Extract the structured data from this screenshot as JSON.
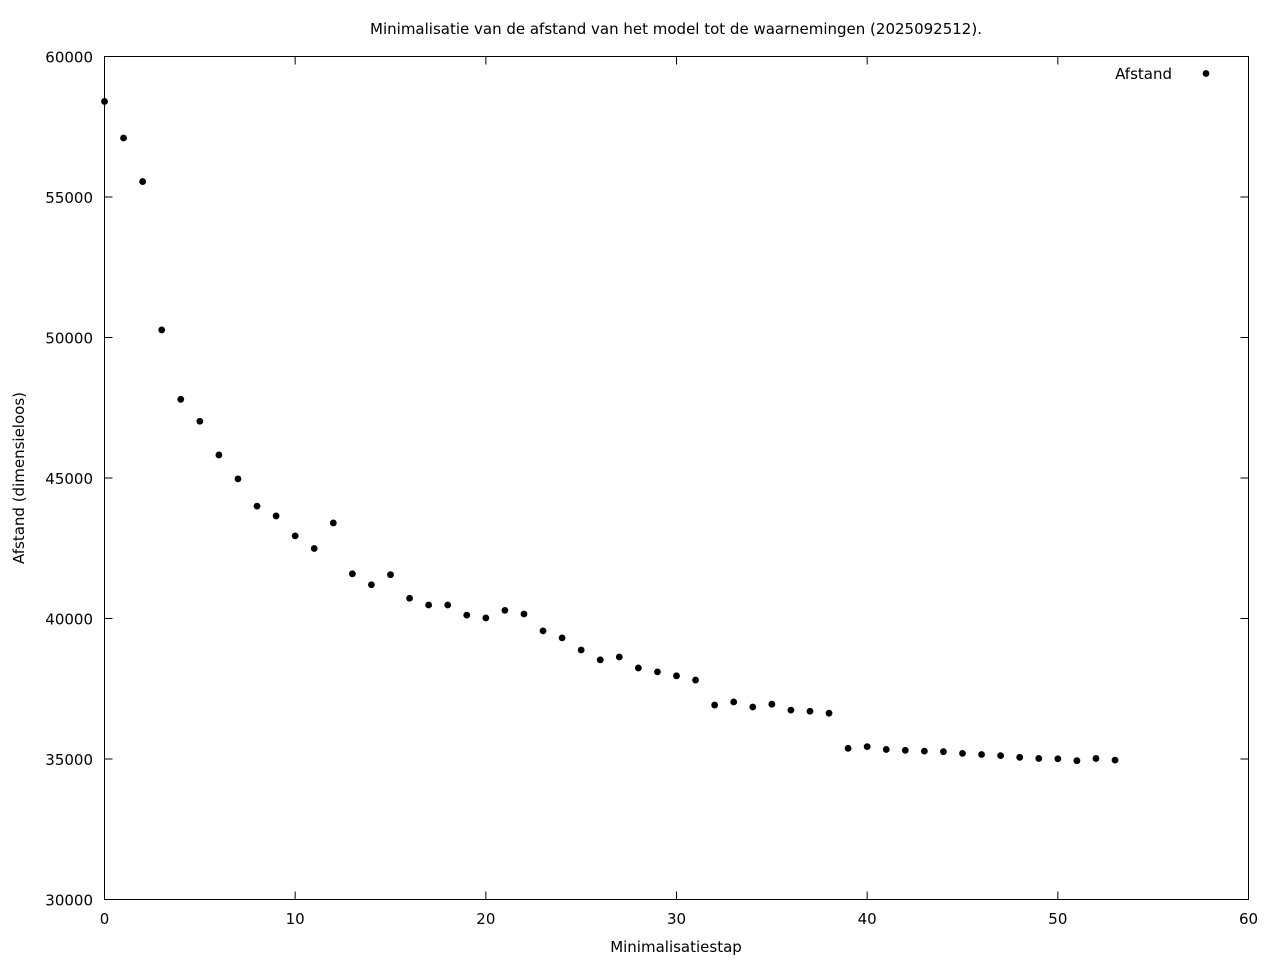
{
  "chart_data": {
    "type": "scatter",
    "title": "Minimalisatie van de afstand van het model tot de waarnemingen (2025092512).",
    "xlabel": "Minimalisatiestap",
    "ylabel": "Afstand (dimensieloos)",
    "xlim": [
      0,
      60
    ],
    "ylim": [
      30000,
      60000
    ],
    "xticks": [
      "0",
      "10",
      "20",
      "30",
      "40",
      "50",
      "60"
    ],
    "yticks": [
      "30000",
      "35000",
      "40000",
      "45000",
      "50000",
      "55000",
      "60000"
    ],
    "grid": false,
    "legend_position": "top-right",
    "series": [
      {
        "name": "Afstand",
        "color": "#000000",
        "x": [
          0,
          1,
          2,
          3,
          4,
          5,
          6,
          7,
          8,
          9,
          10,
          11,
          12,
          13,
          14,
          15,
          16,
          17,
          18,
          19,
          20,
          21,
          22,
          23,
          24,
          25,
          26,
          27,
          28,
          29,
          30,
          31,
          32,
          33,
          34,
          35,
          36,
          37,
          38,
          39,
          40,
          41,
          42,
          43,
          44,
          45,
          46,
          47,
          48,
          49,
          50,
          51,
          52,
          53
        ],
        "y": [
          58400,
          57100,
          55550,
          50270,
          47800,
          47020,
          45820,
          44970,
          44000,
          43650,
          42940,
          42490,
          43400,
          41590,
          41200,
          41560,
          40720,
          40480,
          40480,
          40120,
          40020,
          40290,
          40160,
          39560,
          39310,
          38880,
          38530,
          38630,
          38240,
          38100,
          37960,
          37810,
          36920,
          37030,
          36850,
          36950,
          36740,
          36700,
          36630,
          35380,
          35440,
          35340,
          35310,
          35280,
          35260,
          35200,
          35160,
          35120,
          35060,
          35020,
          35010,
          34940,
          35020,
          34960
        ]
      }
    ]
  }
}
